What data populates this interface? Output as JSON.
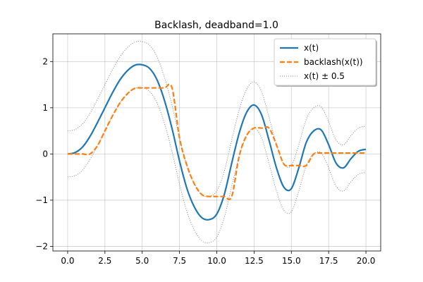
{
  "chart_data": {
    "type": "line",
    "title": "Backlash, deadband=1.0",
    "xlabel": "",
    "ylabel": "",
    "xlim": [
      -0.99,
      20.99
    ],
    "ylim": [
      -2.1,
      2.6
    ],
    "grid": true,
    "legend_position": "top-right",
    "x_ticks": [
      0.0,
      2.5,
      5.0,
      7.5,
      10.0,
      12.5,
      15.0,
      17.5,
      20.0
    ],
    "x_tick_labels": [
      "0.0",
      "2.5",
      "5.0",
      "7.5",
      "10.0",
      "12.5",
      "15.0",
      "17.5",
      "20.0"
    ],
    "y_ticks": [
      -2,
      -1,
      0,
      1,
      2
    ],
    "y_tick_labels": [
      "−2",
      "−1",
      "0",
      "1",
      "2"
    ],
    "x": [
      0,
      0.5,
      1,
      1.5,
      2,
      2.5,
      3,
      3.5,
      4,
      4.5,
      5,
      5.5,
      6,
      6.5,
      7,
      7.5,
      8,
      8.5,
      9,
      9.5,
      10,
      10.5,
      11,
      11.5,
      12,
      12.5,
      13,
      13.5,
      14,
      14.5,
      15,
      15.5,
      16,
      16.5,
      17,
      17.5,
      18,
      18.5,
      19,
      19.5,
      20
    ],
    "series": [
      {
        "name": "x(t)",
        "color": "#1f77b4",
        "style": "solid",
        "values": [
          0.0,
          0.03,
          0.15,
          0.38,
          0.68,
          1.0,
          1.32,
          1.6,
          1.8,
          1.92,
          1.93,
          1.85,
          1.6,
          1.15,
          0.55,
          -0.15,
          -0.75,
          -1.15,
          -1.38,
          -1.42,
          -1.3,
          -0.88,
          -0.2,
          0.45,
          0.9,
          1.06,
          0.85,
          0.3,
          -0.3,
          -0.72,
          -0.75,
          -0.3,
          0.25,
          0.5,
          0.52,
          0.2,
          -0.2,
          -0.3,
          -0.1,
          0.06,
          0.1
        ]
      },
      {
        "name": "backlash(x(t))",
        "color": "#ff7f0e",
        "style": "dashed",
        "values": [
          0.0,
          0.0,
          0.0,
          0.0,
          0.18,
          0.5,
          0.82,
          1.1,
          1.3,
          1.42,
          1.43,
          1.43,
          1.43,
          1.43,
          1.43,
          0.35,
          -0.25,
          -0.65,
          -0.88,
          -0.92,
          -0.92,
          -0.92,
          -0.92,
          -0.05,
          0.4,
          0.56,
          0.56,
          0.56,
          0.2,
          -0.22,
          -0.25,
          -0.25,
          -0.25,
          0.0,
          0.02,
          0.02,
          0.02,
          0.02,
          0.02,
          0.02,
          0.02
        ]
      },
      {
        "name": "x(t) ± 0.5",
        "color": "#7f7f7f",
        "style": "dotted",
        "offset": 0.5
      }
    ]
  }
}
